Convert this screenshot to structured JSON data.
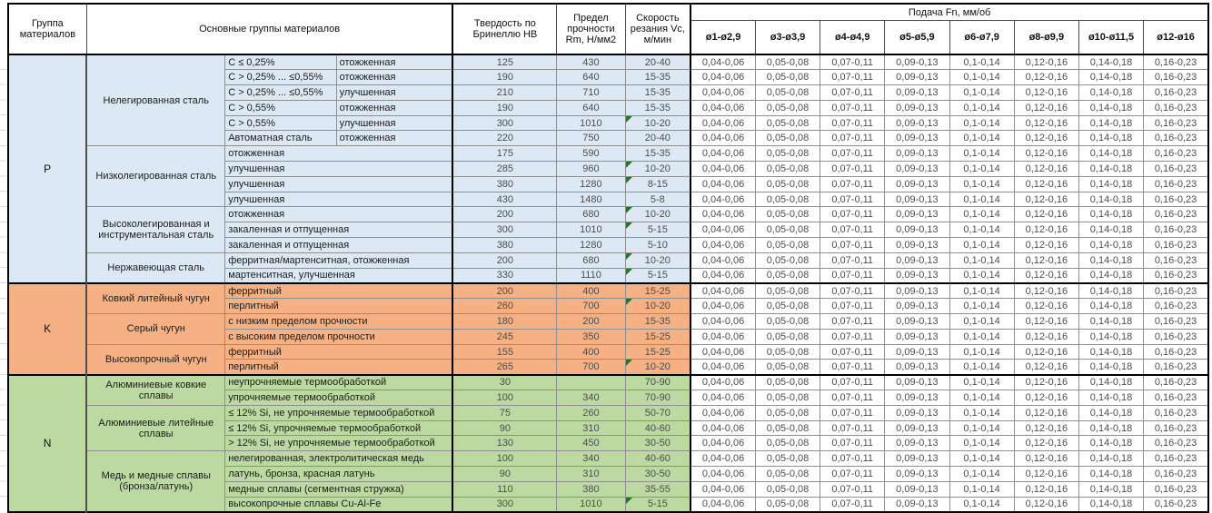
{
  "table": {
    "header": {
      "group": "Группа материалов",
      "main_groups": "Основные группы материалов",
      "hardness": "Твердость по Бринеллю HB",
      "strength": "Предел прочности Rm, Н/мм2",
      "speed": "Скорость резания Vc, м/мин",
      "feed": "Подача Fn, мм/об",
      "feed_columns": [
        "ø1-ø2,9",
        "ø3-ø3,9",
        "ø4-ø4,9",
        "ø5-ø5,9",
        "ø6-ø7,9",
        "ø8-ø9,9",
        "ø10-ø11,5",
        "ø12-ø16"
      ]
    },
    "feed_values": [
      "0,04-0,06",
      "0,05-0,08",
      "0,07-0,11",
      "0,09-0,13",
      "0,1-0,14",
      "0,12-0,16",
      "0,14-0,18",
      "0,16-0,23"
    ],
    "note_color": "#1a7d1a",
    "groups": [
      {
        "code": "P",
        "color": "#dce9f5",
        "subgroups": [
          {
            "name": "Нелегированная сталь",
            "rows": [
              {
                "desc1": "C ≤ 0,25%",
                "desc2": "отожженная",
                "hb": "125",
                "rm": "430",
                "vc": "20-40",
                "note": false
              },
              {
                "desc1": "C > 0,25% ... ≤0,55%",
                "desc2": "отожженная",
                "hb": "190",
                "rm": "640",
                "vc": "15-35",
                "note": false
              },
              {
                "desc1": "C > 0,25% ... ≤0,55%",
                "desc2": "улучшенная",
                "hb": "210",
                "rm": "710",
                "vc": "15-35",
                "note": false
              },
              {
                "desc1": "C > 0,55%",
                "desc2": "отожженная",
                "hb": "190",
                "rm": "640",
                "vc": "15-35",
                "note": false
              },
              {
                "desc1": "C > 0,55%",
                "desc2": "улучшенная",
                "hb": "300",
                "rm": "1010",
                "vc": "10-20",
                "note": true
              },
              {
                "desc1": "Автоматная сталь",
                "desc2": "отожженная",
                "hb": "220",
                "rm": "750",
                "vc": "20-40",
                "note": false
              }
            ]
          },
          {
            "name": "Низколегированная сталь",
            "rows": [
              {
                "desc": "отожженная",
                "hb": "175",
                "rm": "590",
                "vc": "15-35",
                "note": false
              },
              {
                "desc": "улучшенная",
                "hb": "285",
                "rm": "960",
                "vc": "10-20",
                "note": true
              },
              {
                "desc": "улучшенная",
                "hb": "380",
                "rm": "1280",
                "vc": "8-15",
                "note": true
              },
              {
                "desc": "улучшенная",
                "hb": "430",
                "rm": "1480",
                "vc": "5-8",
                "note": false
              }
            ]
          },
          {
            "name": "Высоколегированная и инструментальная сталь",
            "rows": [
              {
                "desc": "отожженная",
                "hb": "200",
                "rm": "680",
                "vc": "10-20",
                "note": true
              },
              {
                "desc": "закаленная и отпущенная",
                "hb": "300",
                "rm": "1010",
                "vc": "5-15",
                "note": true
              },
              {
                "desc": "закаленная и отпущенная",
                "hb": "380",
                "rm": "1280",
                "vc": "5-10",
                "note": false
              }
            ]
          },
          {
            "name": "Нержавеющая сталь",
            "rows": [
              {
                "desc": "ферритная/мартенситная, отожженная",
                "hb": "200",
                "rm": "680",
                "vc": "10-20",
                "note": true
              },
              {
                "desc": "мартенситная, улучшенная",
                "hb": "330",
                "rm": "1110",
                "vc": "5-15",
                "note": true
              }
            ]
          }
        ]
      },
      {
        "code": "K",
        "color": "#f5b183",
        "subgroups": [
          {
            "name": "Ковкий литейный чугун",
            "rows": [
              {
                "desc": "ферритный",
                "hb": "200",
                "rm": "400",
                "vc": "15-25",
                "note": false
              },
              {
                "desc": "перлитный",
                "hb": "260",
                "rm": "700",
                "vc": "10-20",
                "note": true
              }
            ]
          },
          {
            "name": "Серый чугун",
            "rows": [
              {
                "desc": "с низким пределом прочности",
                "hb": "180",
                "rm": "200",
                "vc": "15-35",
                "note": false
              },
              {
                "desc": "с высоким пределом прочности",
                "hb": "245",
                "rm": "350",
                "vc": "15-25",
                "note": false
              }
            ]
          },
          {
            "name": "Высокопрочный чугун",
            "rows": [
              {
                "desc": "ферритный",
                "hb": "155",
                "rm": "400",
                "vc": "15-25",
                "note": false
              },
              {
                "desc": "перлитный",
                "hb": "265",
                "rm": "700",
                "vc": "10-20",
                "note": true
              }
            ]
          }
        ]
      },
      {
        "code": "N",
        "color": "#bcd9a2",
        "subgroups": [
          {
            "name": "Алюминиевые ковкие сплавы",
            "rows": [
              {
                "desc": "неупрочняемые термообработкой",
                "hb": "30",
                "rm": "",
                "vc": "70-90",
                "note": false
              },
              {
                "desc": "упрочняемые термообработкой",
                "hb": "100",
                "rm": "340",
                "vc": "70-90",
                "note": false
              }
            ]
          },
          {
            "name": "Алюминиевые литейные сплавы",
            "rows": [
              {
                "desc": "≤ 12% Si, не упрочняемые термообработкой",
                "hb": "75",
                "rm": "260",
                "vc": "50-70",
                "note": false
              },
              {
                "desc": "≤ 12% Si, упрочняемые термообработкой",
                "hb": "90",
                "rm": "310",
                "vc": "40-60",
                "note": false
              },
              {
                "desc": "> 12% Si, не упрочняемые термообработкой",
                "hb": "130",
                "rm": "450",
                "vc": "30-50",
                "note": false
              }
            ]
          },
          {
            "name": "Медь и медные сплавы (бронза/латунь)",
            "rows": [
              {
                "desc": "нелегированная, электролитическая медь",
                "hb": "100",
                "rm": "340",
                "vc": "40-60",
                "note": false
              },
              {
                "desc": "латунь, бронза, красная латунь",
                "hb": "90",
                "rm": "310",
                "vc": "30-50",
                "note": false
              },
              {
                "desc": "медные сплавы (сегментная стружка)",
                "hb": "110",
                "rm": "380",
                "vc": "35-55",
                "note": false
              },
              {
                "desc": "высокопрочные сплавы Cu-Al-Fe",
                "hb": "300",
                "rm": "1010",
                "vc": "5-15",
                "note": true
              }
            ]
          }
        ]
      }
    ]
  }
}
